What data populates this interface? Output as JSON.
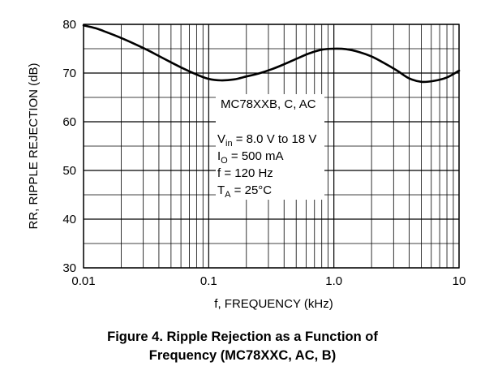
{
  "chart_data": {
    "type": "line",
    "x_scale": "log",
    "xlim": [
      0.01,
      10
    ],
    "ylim": [
      30,
      80
    ],
    "xlabel": "f, FREQUENCY (kHz)",
    "ylabel": "RR, RIPPLE REJECTION (dB)",
    "x_ticks": [
      {
        "value": 0.01,
        "label": "0.01"
      },
      {
        "value": 0.1,
        "label": "0.1"
      },
      {
        "value": 1,
        "label": "1.0"
      },
      {
        "value": 10,
        "label": "10"
      }
    ],
    "y_ticks": [
      {
        "value": 30,
        "label": "30"
      },
      {
        "value": 40,
        "label": "40"
      },
      {
        "value": 50,
        "label": "50"
      },
      {
        "value": 60,
        "label": "60"
      },
      {
        "value": 70,
        "label": "70"
      },
      {
        "value": 80,
        "label": "80"
      }
    ],
    "y_minor_step": 5,
    "grid": true,
    "series": [
      {
        "name": "MC78XXB, C, AC",
        "color": "#000000",
        "x": [
          0.01,
          0.0125,
          0.016,
          0.02,
          0.025,
          0.032,
          0.04,
          0.05,
          0.063,
          0.08,
          0.1,
          0.125,
          0.16,
          0.2,
          0.25,
          0.32,
          0.4,
          0.5,
          0.63,
          0.8,
          1.0,
          1.25,
          1.6,
          2.0,
          2.5,
          3.2,
          4.0,
          5.0,
          6.3,
          8.0,
          10
        ],
        "y": [
          79.8,
          79.2,
          78.2,
          77.2,
          76.1,
          74.8,
          73.5,
          72.2,
          70.9,
          69.7,
          68.8,
          68.5,
          68.7,
          69.3,
          69.9,
          70.8,
          71.8,
          72.9,
          74.0,
          74.8,
          75.0,
          74.9,
          74.3,
          73.4,
          72.1,
          70.5,
          68.9,
          68.2,
          68.4,
          69.1,
          70.5
        ]
      }
    ],
    "annotation": {
      "series_label": "MC78XXB, C, AC",
      "conditions": [
        {
          "symbol": "V",
          "sub": "in",
          "text": " = 8.0 V to 18 V"
        },
        {
          "symbol": "I",
          "sub": "O",
          "text": " = 500 mA"
        },
        {
          "symbol": "f",
          "sub": "",
          "text": " = 120 Hz"
        },
        {
          "symbol": "T",
          "sub": "A",
          "text": " = 25°C"
        }
      ]
    }
  },
  "caption": {
    "line1": "Figure 4. Ripple Rejection as a Function of",
    "line2": "Frequency (MC78XXC, AC, B)"
  }
}
